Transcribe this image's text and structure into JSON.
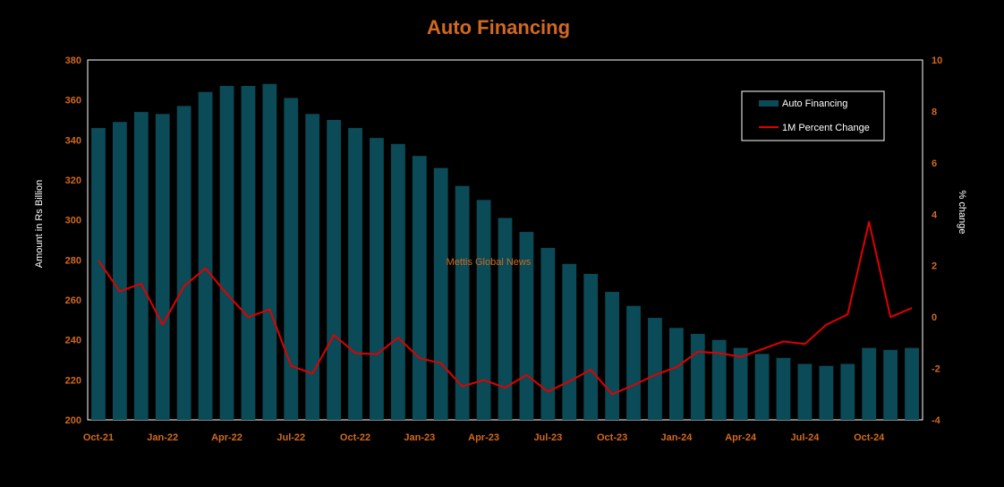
{
  "chart_data": {
    "type": "bar+line",
    "title": "Auto Financing",
    "ylabel_left": "Amount in Rs Billion",
    "ylabel_right": "% change",
    "ylim_left": [
      200,
      380
    ],
    "ylim_right": [
      -4,
      10
    ],
    "yticks_left": [
      "200",
      "220",
      "240",
      "260",
      "280",
      "300",
      "320",
      "340",
      "360",
      "380"
    ],
    "yticks_right": [
      "-4",
      "-2",
      "0",
      "2",
      "4",
      "6",
      "8",
      "10"
    ],
    "categories": [
      "Oct-21",
      "Nov-21",
      "Dec-21",
      "Jan-22",
      "Feb-22",
      "Mar-22",
      "Apr-22",
      "May-22",
      "Jun-22",
      "Jul-22",
      "Aug-22",
      "Sep-22",
      "Oct-22",
      "Nov-22",
      "Dec-22",
      "Jan-23",
      "Feb-23",
      "Mar-23",
      "Apr-23",
      "May-23",
      "Jun-23",
      "Jul-23",
      "Aug-23",
      "Sep-23",
      "Oct-23",
      "Nov-23",
      "Dec-23",
      "Jan-24",
      "Feb-24",
      "Mar-24",
      "Apr-24",
      "May-24",
      "Jun-24",
      "Jul-24",
      "Aug-24",
      "Sep-24",
      "Oct-24",
      "Nov-24",
      "Dec-24"
    ],
    "x_tick_labels": [
      "Oct-21",
      "Jan-22",
      "Apr-22",
      "Jul-22",
      "Oct-22",
      "Jan-23",
      "Apr-23",
      "Jul-23",
      "Oct-23",
      "Jan-24",
      "Apr-24",
      "Jul-24",
      "Oct-24"
    ],
    "series": [
      {
        "name": "Auto Financing",
        "type": "bar",
        "axis": "left",
        "color": "#0b4a57",
        "values": [
          346,
          349,
          354,
          353,
          357,
          364,
          367,
          367,
          368,
          361,
          353,
          350,
          346,
          341,
          338,
          332,
          326,
          317,
          310,
          301,
          294,
          286,
          278,
          273,
          264,
          257,
          251,
          246,
          243,
          240,
          236,
          233,
          231,
          228,
          227,
          228,
          236,
          235,
          236
        ]
      },
      {
        "name": "1M Percent Change",
        "type": "line",
        "axis": "right",
        "color": "#e00000",
        "values": [
          2.2,
          1.0,
          1.3,
          -0.3,
          1.2,
          1.9,
          0.9,
          0.0,
          0.3,
          -1.9,
          -2.2,
          -0.7,
          -1.4,
          -1.45,
          -0.8,
          -1.6,
          -1.8,
          -2.7,
          -2.45,
          -2.75,
          -2.25,
          -2.9,
          -2.5,
          -2.05,
          -3.0,
          -2.65,
          -2.25,
          -1.95,
          -1.35,
          -1.4,
          -1.55,
          -1.25,
          -0.95,
          -1.05,
          -0.3,
          0.1,
          3.7,
          0.0,
          0.35
        ]
      }
    ],
    "legend_position": "top-right",
    "watermark": "Mettis Global News",
    "grid": false
  },
  "colors": {
    "background": "#000000",
    "title": "#d2691e",
    "tick_text": "#d2691e",
    "watermark": "#d2691e",
    "frame": "#ffffff"
  }
}
